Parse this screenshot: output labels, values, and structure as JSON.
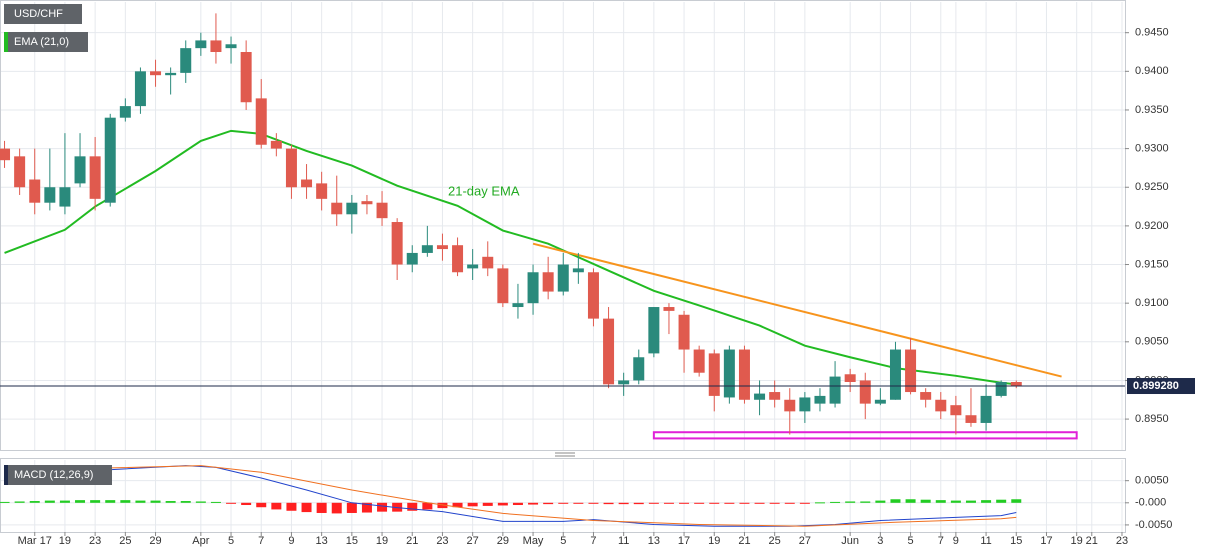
{
  "chart_data": [
    {
      "type": "candlestick",
      "title": "USD/CHF",
      "up_color": "#2a8a7c",
      "down_color": "#e05a4e",
      "open": [
        0.93,
        0.929,
        0.926,
        0.923,
        0.9225,
        0.9255,
        0.929,
        0.923,
        0.934,
        0.9355,
        0.94,
        0.9395,
        0.9398,
        0.943,
        0.944,
        0.943,
        0.9425,
        0.9365,
        0.931,
        0.93,
        0.926,
        0.9255,
        0.923,
        0.9215,
        0.9232,
        0.923,
        0.9205,
        0.915,
        0.9165,
        0.9175,
        0.9175,
        0.9145,
        0.916,
        0.9145,
        0.9095,
        0.91,
        0.914,
        0.9115,
        0.914,
        0.914,
        0.908,
        0.8995,
        0.9,
        0.9035,
        0.9095,
        0.9085,
        0.904,
        0.9035,
        0.8978,
        0.904,
        0.8975,
        0.8985,
        0.8975,
        0.896,
        0.897,
        0.897,
        0.9008,
        0.9,
        0.897,
        0.8975,
        0.904,
        0.8985,
        0.8975,
        0.8968,
        0.8955,
        0.8945,
        0.898,
        0.8998
      ],
      "high": [
        0.931,
        0.93,
        0.93,
        0.93,
        0.932,
        0.932,
        0.9315,
        0.9345,
        0.9365,
        0.9405,
        0.9415,
        0.9405,
        0.944,
        0.945,
        0.9475,
        0.9445,
        0.944,
        0.939,
        0.932,
        0.9305,
        0.928,
        0.927,
        0.9265,
        0.924,
        0.924,
        0.9245,
        0.921,
        0.9175,
        0.92,
        0.919,
        0.9185,
        0.917,
        0.918,
        0.915,
        0.9125,
        0.915,
        0.916,
        0.9165,
        0.9165,
        0.9145,
        0.9095,
        0.901,
        0.904,
        0.9095,
        0.91,
        0.909,
        0.9045,
        0.904,
        0.9045,
        0.9045,
        0.9,
        0.9,
        0.899,
        0.8985,
        0.899,
        0.9025,
        0.9015,
        0.901,
        0.899,
        0.905,
        0.9055,
        0.899,
        0.8985,
        0.898,
        0.899,
        0.8995,
        0.9,
        0.9
      ],
      "low": [
        0.9275,
        0.924,
        0.9215,
        0.922,
        0.9215,
        0.925,
        0.922,
        0.9225,
        0.9335,
        0.9345,
        0.938,
        0.937,
        0.9385,
        0.942,
        0.941,
        0.941,
        0.935,
        0.93,
        0.929,
        0.9235,
        0.9235,
        0.922,
        0.92,
        0.919,
        0.9215,
        0.92,
        0.913,
        0.914,
        0.916,
        0.9155,
        0.9135,
        0.913,
        0.9135,
        0.9095,
        0.908,
        0.9085,
        0.9105,
        0.911,
        0.9125,
        0.907,
        0.899,
        0.898,
        0.8995,
        0.903,
        0.906,
        0.901,
        0.9005,
        0.896,
        0.897,
        0.897,
        0.8955,
        0.8965,
        0.893,
        0.8945,
        0.896,
        0.8965,
        0.8985,
        0.895,
        0.8968,
        0.8975,
        0.8982,
        0.8965,
        0.895,
        0.893,
        0.894,
        0.8935,
        0.8978,
        0.899
      ],
      "close": [
        0.9285,
        0.925,
        0.923,
        0.925,
        0.925,
        0.929,
        0.9235,
        0.934,
        0.9355,
        0.94,
        0.9395,
        0.9398,
        0.943,
        0.944,
        0.9425,
        0.9435,
        0.936,
        0.9305,
        0.93,
        0.925,
        0.925,
        0.9235,
        0.9215,
        0.923,
        0.9228,
        0.921,
        0.915,
        0.9165,
        0.9175,
        0.917,
        0.914,
        0.915,
        0.9145,
        0.91,
        0.91,
        0.914,
        0.9115,
        0.915,
        0.9145,
        0.908,
        0.8995,
        0.9,
        0.903,
        0.9095,
        0.909,
        0.904,
        0.901,
        0.898,
        0.904,
        0.8975,
        0.8983,
        0.8975,
        0.896,
        0.8978,
        0.898,
        0.9005,
        0.8998,
        0.897,
        0.8975,
        0.904,
        0.8985,
        0.8975,
        0.896,
        0.8955,
        0.8945,
        0.898,
        0.8998,
        0.8993
      ],
      "series": [
        {
          "name": "EMA (21,0)",
          "color": "#22bb22",
          "x": [
            0,
            4,
            6,
            10,
            13,
            15,
            17,
            20,
            23,
            26,
            30,
            33,
            36,
            40,
            43,
            46,
            50,
            53,
            56,
            59,
            63,
            66,
            67
          ],
          "values": [
            0.9165,
            0.9195,
            0.9225,
            0.9271,
            0.931,
            0.9323,
            0.9319,
            0.9297,
            0.9278,
            0.9252,
            0.9226,
            0.9194,
            0.9177,
            0.9142,
            0.9116,
            0.9097,
            0.9071,
            0.9045,
            0.903,
            0.9016,
            0.9006,
            0.8997,
            0.8995
          ]
        },
        {
          "color": "#f7941d",
          "x": [
            35,
            70
          ],
          "values": [
            0.9177,
            0.9005
          ]
        }
      ],
      "annotation": "21-day EMA",
      "support_zone": {
        "color": "#e020d8",
        "x": [
          43,
          71
        ],
        "y": [
          0.8925,
          0.8933
        ]
      },
      "last_price": {
        "value": 0.89928,
        "label": "0.899280"
      },
      "xlim": [
        -0.3,
        74.2
      ],
      "ylim": [
        0.891,
        0.9491
      ],
      "yticks": [
        {
          "value": 0.945,
          "label": "0.9450"
        },
        {
          "value": 0.94,
          "label": "0.9400"
        },
        {
          "value": 0.935,
          "label": "0.9350"
        },
        {
          "value": 0.93,
          "label": "0.9300"
        },
        {
          "value": 0.925,
          "label": "0.9250"
        },
        {
          "value": 0.92,
          "label": "0.9200"
        },
        {
          "value": 0.915,
          "label": "0.9150"
        },
        {
          "value": 0.91,
          "label": "0.9100"
        },
        {
          "value": 0.905,
          "label": "0.9050"
        },
        {
          "value": 0.9,
          "label": "0.9000"
        },
        {
          "value": 0.895,
          "label": "0.8950"
        }
      ],
      "grid": true
    },
    {
      "type": "macd",
      "title": "MACD (12,26,9)",
      "histogram": {
        "up_color": "#22cc22",
        "down_color": "#ff2020",
        "values": [
          0.0002,
          0.0003,
          0.0004,
          0.0005,
          0.0005,
          0.0006,
          0.0006,
          0.0006,
          0.0006,
          0.0005,
          0.0005,
          0.0004,
          0.0004,
          0.0003,
          0.0002,
          -0.0002,
          -0.0005,
          -0.001,
          -0.0015,
          -0.0018,
          -0.0021,
          -0.0023,
          -0.0024,
          -0.0023,
          -0.0022,
          -0.002,
          -0.002,
          -0.0018,
          -0.0015,
          -0.0012,
          -0.001,
          -0.0008,
          -0.0007,
          -0.0006,
          -0.0005,
          -0.0004,
          -0.0003,
          -0.0002,
          -0.0002,
          -0.0002,
          -0.0003,
          -0.0003,
          -0.0003,
          -0.0002,
          -0.0002,
          -0.0002,
          -0.0002,
          -0.0002,
          -0.0001,
          -0.0001,
          -0.0001,
          -0.0001,
          -0.0001,
          -0.0001,
          0.0001,
          0.0002,
          0.0003,
          0.0003,
          0.0005,
          0.0008,
          0.0008,
          0.0007,
          0.0006,
          0.0005,
          0.0005,
          0.0006,
          0.0007,
          0.0008
        ]
      },
      "series": [
        {
          "color": "#2244cc",
          "x": [
            0,
            6,
            12,
            14,
            17,
            20,
            23,
            26,
            29,
            33,
            37,
            39,
            43,
            47,
            52,
            55,
            58,
            63,
            66,
            67
          ],
          "values": [
            0.0084,
            0.0073,
            0.0084,
            0.008,
            0.0056,
            0.0029,
            0.0,
            -0.0011,
            -0.002,
            -0.0042,
            -0.0042,
            -0.0038,
            -0.0049,
            -0.0053,
            -0.0053,
            -0.0049,
            -0.004,
            -0.0033,
            -0.0029,
            -0.0022
          ]
        },
        {
          "color": "#f07020",
          "x": [
            0,
            6,
            13,
            17,
            23,
            28,
            33,
            39,
            46,
            53,
            59,
            66,
            67
          ],
          "values": [
            0.0073,
            0.0078,
            0.0084,
            0.0069,
            0.0029,
            0.0,
            -0.0024,
            -0.004,
            -0.0049,
            -0.0053,
            -0.0044,
            -0.0036,
            -0.0033
          ]
        }
      ],
      "xlim": [
        -0.3,
        74.2
      ],
      "ylim": [
        -0.0066,
        0.0099
      ],
      "yticks": [
        {
          "value": 0.005,
          "label": "0.0050"
        },
        {
          "value": 0,
          "label": "-0.000"
        },
        {
          "value": -0.005,
          "label": "-0.0050"
        }
      ],
      "xticks": [
        {
          "value": 2,
          "label": "Mar 17"
        },
        {
          "value": 4,
          "label": "19"
        },
        {
          "value": 6,
          "label": "23"
        },
        {
          "value": 8,
          "label": "25"
        },
        {
          "value": 10,
          "label": "29"
        },
        {
          "value": 13,
          "label": "Apr"
        },
        {
          "value": 15,
          "label": "5"
        },
        {
          "value": 17,
          "label": "7"
        },
        {
          "value": 19,
          "label": "9"
        },
        {
          "value": 21,
          "label": "13"
        },
        {
          "value": 23,
          "label": "15"
        },
        {
          "value": 25,
          "label": "19"
        },
        {
          "value": 27,
          "label": "21"
        },
        {
          "value": 29,
          "label": "23"
        },
        {
          "value": 31,
          "label": "27"
        },
        {
          "value": 33,
          "label": "29"
        },
        {
          "value": 35,
          "label": "May"
        },
        {
          "value": 37,
          "label": "5"
        },
        {
          "value": 39,
          "label": "7"
        },
        {
          "value": 41,
          "label": "11"
        },
        {
          "value": 43,
          "label": "13"
        },
        {
          "value": 45,
          "label": "17"
        },
        {
          "value": 47,
          "label": "19"
        },
        {
          "value": 49,
          "label": "21"
        },
        {
          "value": 51,
          "label": "25"
        },
        {
          "value": 53,
          "label": "27"
        },
        {
          "value": 56,
          "label": "Jun"
        },
        {
          "value": 58,
          "label": "3"
        },
        {
          "value": 60,
          "label": "5"
        },
        {
          "value": 62,
          "label": "7"
        },
        {
          "value": 63,
          "label": "9"
        },
        {
          "value": 65,
          "label": "11"
        },
        {
          "value": 67,
          "label": "15"
        },
        {
          "value": 69,
          "label": "17"
        },
        {
          "value": 71,
          "label": "19"
        },
        {
          "value": 72,
          "label": "21"
        },
        {
          "value": 74,
          "label": "23"
        }
      ],
      "grid": true
    }
  ]
}
